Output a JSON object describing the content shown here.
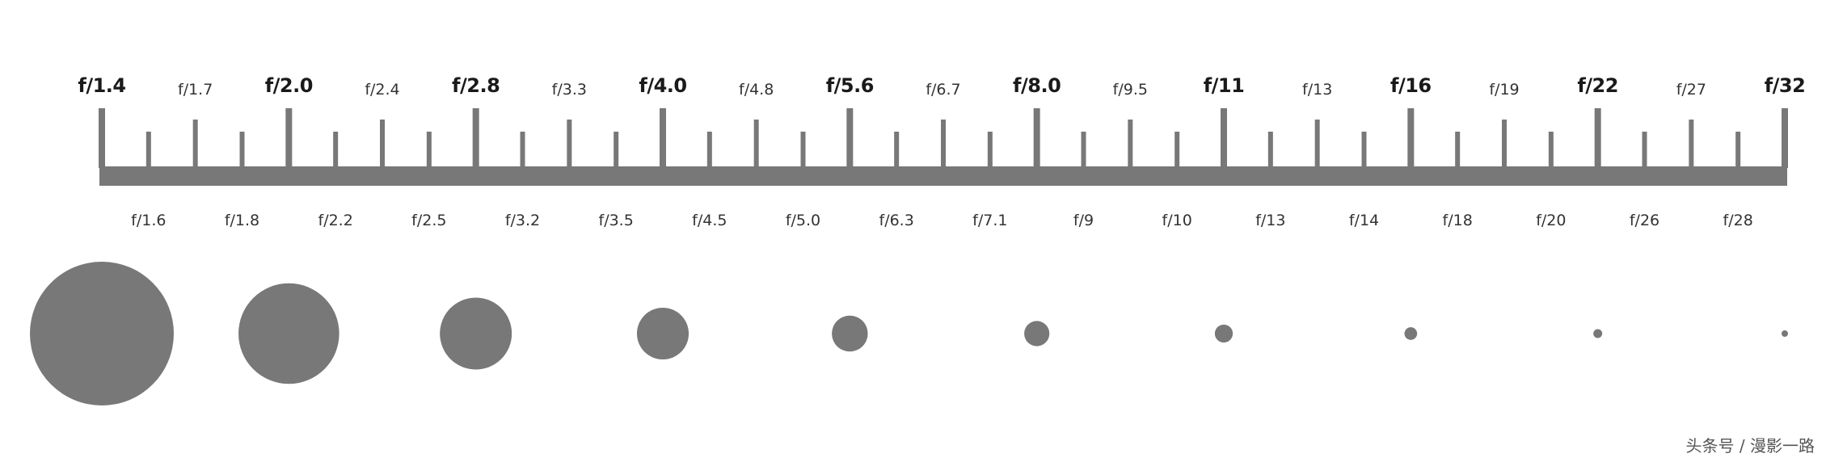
{
  "scale": {
    "bar_color": "#787878",
    "stops": [
      {
        "label": "f/1.4",
        "kind": "major"
      },
      {
        "label": "f/1.6",
        "kind": "minor"
      },
      {
        "label": "f/1.7",
        "kind": "third"
      },
      {
        "label": "f/1.8",
        "kind": "minor"
      },
      {
        "label": "f/2.0",
        "kind": "major"
      },
      {
        "label": "f/2.2",
        "kind": "minor"
      },
      {
        "label": "f/2.4",
        "kind": "third"
      },
      {
        "label": "f/2.5",
        "kind": "minor"
      },
      {
        "label": "f/2.8",
        "kind": "major"
      },
      {
        "label": "f/3.2",
        "kind": "minor"
      },
      {
        "label": "f/3.3",
        "kind": "third"
      },
      {
        "label": "f/3.5",
        "kind": "minor"
      },
      {
        "label": "f/4.0",
        "kind": "major"
      },
      {
        "label": "f/4.5",
        "kind": "minor"
      },
      {
        "label": "f/4.8",
        "kind": "third"
      },
      {
        "label": "f/5.0",
        "kind": "minor"
      },
      {
        "label": "f/5.6",
        "kind": "major"
      },
      {
        "label": "f/6.3",
        "kind": "minor"
      },
      {
        "label": "f/6.7",
        "kind": "third"
      },
      {
        "label": "f/7.1",
        "kind": "minor"
      },
      {
        "label": "f/8.0",
        "kind": "major"
      },
      {
        "label": "f/9",
        "kind": "minor"
      },
      {
        "label": "f/9.5",
        "kind": "third"
      },
      {
        "label": "f/10",
        "kind": "minor"
      },
      {
        "label": "f/11",
        "kind": "major"
      },
      {
        "label": "f/13",
        "kind": "minor"
      },
      {
        "label": "f/13",
        "kind": "third"
      },
      {
        "label": "f/14",
        "kind": "minor"
      },
      {
        "label": "f/16",
        "kind": "major"
      },
      {
        "label": "f/18",
        "kind": "minor"
      },
      {
        "label": "f/19",
        "kind": "third"
      },
      {
        "label": "f/20",
        "kind": "minor"
      },
      {
        "label": "f/22",
        "kind": "major"
      },
      {
        "label": "f/26",
        "kind": "minor"
      },
      {
        "label": "f/27",
        "kind": "third"
      },
      {
        "label": "f/28",
        "kind": "minor"
      },
      {
        "label": "f/32",
        "kind": "major"
      }
    ]
  },
  "apertures": {
    "color": "#787878",
    "stops": [
      {
        "f": "f/1.4",
        "relative_diameter": 1.0
      },
      {
        "f": "f/2.0",
        "relative_diameter": 0.7
      },
      {
        "f": "f/2.8",
        "relative_diameter": 0.5
      },
      {
        "f": "f/4.0",
        "relative_diameter": 0.36
      },
      {
        "f": "f/5.6",
        "relative_diameter": 0.25
      },
      {
        "f": "f/8.0",
        "relative_diameter": 0.175
      },
      {
        "f": "f/11",
        "relative_diameter": 0.125
      },
      {
        "f": "f/16",
        "relative_diameter": 0.088
      },
      {
        "f": "f/22",
        "relative_diameter": 0.062
      },
      {
        "f": "f/32",
        "relative_diameter": 0.044
      }
    ]
  },
  "watermark": "头条号 / 漫影一路"
}
